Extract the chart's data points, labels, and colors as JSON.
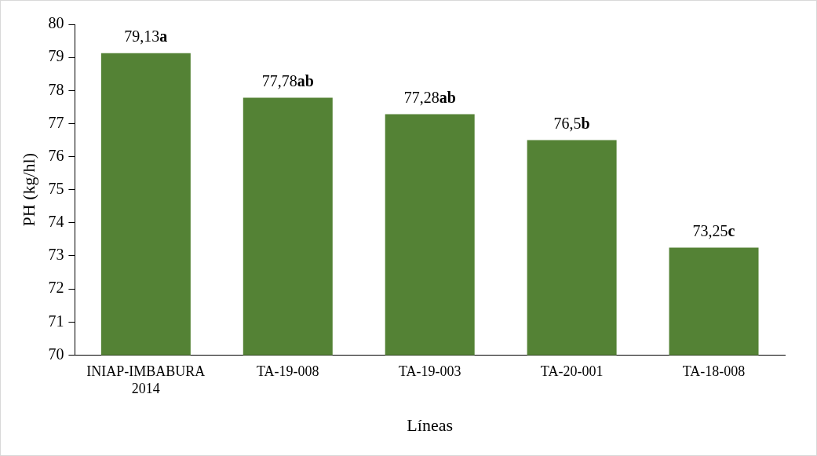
{
  "chart_data": {
    "type": "bar",
    "xlabel": "Líneas",
    "ylabel": "PH (kg/hl)",
    "categories": [
      "INIAP-IMBABURA 2014",
      "TA-19-008",
      "TA-19-003",
      "TA-20-001",
      "TA-18-008"
    ],
    "values": [
      79.13,
      77.78,
      77.28,
      76.5,
      73.25
    ],
    "value_labels": [
      "79,13a",
      "77,78ab",
      "77,28ab",
      "76,5b",
      "73,25c"
    ],
    "color": "#548235",
    "ylim": [
      70,
      80
    ],
    "yticks": [
      70,
      71,
      72,
      73,
      74,
      75,
      76,
      77,
      78,
      79,
      80
    ],
    "grid": false,
    "legend": false
  }
}
